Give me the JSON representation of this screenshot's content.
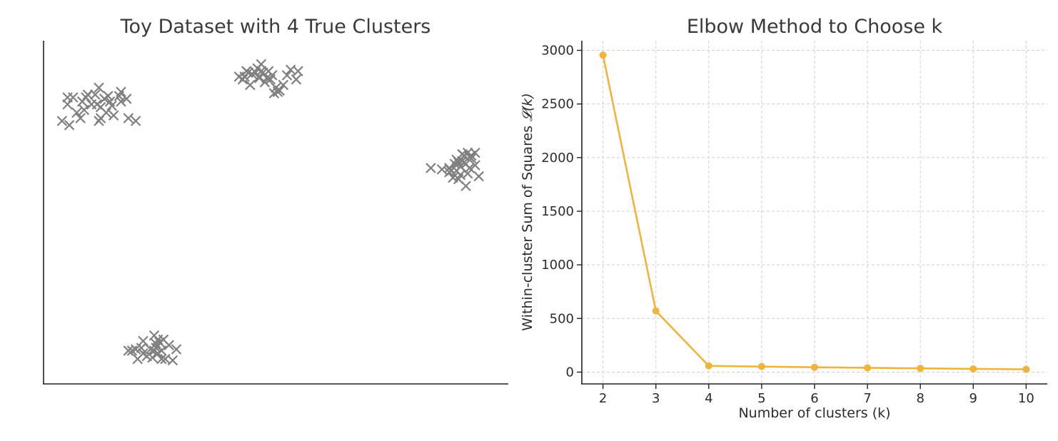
{
  "chart_data": [
    {
      "type": "scatter",
      "title": "Toy Dataset with 4 True Clusters",
      "xlabel": "",
      "ylabel": "",
      "axes_ticks": "hidden",
      "marker": "x",
      "marker_color": "#808080",
      "xlim": [
        -2,
        10.6
      ],
      "ylim": [
        -2.5,
        9.9
      ],
      "series": [
        {
          "points": [
            [
              -1.35,
              7.6
            ],
            [
              -1.1,
              7.3
            ],
            [
              -0.9,
              7.4
            ],
            [
              -0.5,
              8.2
            ],
            [
              -0.25,
              7.9
            ],
            [
              0.1,
              7.7
            ],
            [
              0.5,
              7.0
            ],
            [
              -1.5,
              7.0
            ],
            [
              -1.2,
              7.85
            ],
            [
              -0.8,
              7.95
            ],
            [
              -0.55,
              7.6
            ],
            [
              -0.35,
              7.8
            ],
            [
              -0.15,
              7.55
            ],
            [
              0.05,
              7.9
            ],
            [
              0.3,
              7.1
            ],
            [
              -0.3,
              7.3
            ],
            [
              -1.0,
              7.1
            ],
            [
              -0.7,
              7.6
            ],
            [
              -0.45,
              7.5
            ],
            [
              -0.1,
              7.2
            ],
            [
              -0.6,
              7.95
            ],
            [
              -1.35,
              7.85
            ],
            [
              -0.85,
              7.85
            ],
            [
              0.25,
              7.8
            ],
            [
              -0.5,
              7.0
            ],
            [
              -0.45,
              7.1
            ],
            [
              -1.3,
              6.85
            ],
            [
              -0.2,
              7.7
            ],
            [
              0.1,
              8.05
            ],
            [
              -0.95,
              7.7
            ]
          ]
        },
        {
          "points": [
            [
              3.3,
              8.6
            ],
            [
              3.4,
              8.5
            ],
            [
              3.5,
              8.8
            ],
            [
              3.6,
              8.3
            ],
            [
              3.75,
              8.75
            ],
            [
              3.85,
              8.55
            ],
            [
              4.0,
              8.4
            ],
            [
              4.1,
              8.8
            ],
            [
              4.2,
              8.65
            ],
            [
              4.3,
              8.2
            ],
            [
              4.35,
              8.05
            ],
            [
              4.4,
              8.1
            ],
            [
              4.5,
              8.3
            ],
            [
              4.6,
              8.65
            ],
            [
              4.7,
              8.85
            ],
            [
              4.85,
              8.5
            ],
            [
              4.9,
              8.8
            ],
            [
              3.9,
              9.05
            ],
            [
              3.95,
              8.75
            ],
            [
              4.05,
              8.55
            ],
            [
              3.65,
              8.7
            ],
            [
              3.55,
              8.75
            ],
            [
              3.8,
              8.9
            ],
            [
              4.25,
              8.0
            ],
            [
              3.9,
              8.8
            ],
            [
              3.45,
              8.6
            ],
            [
              3.85,
              8.6
            ],
            [
              4.15,
              8.5
            ]
          ]
        },
        {
          "points": [
            [
              8.5,
              5.3
            ],
            [
              8.8,
              5.25
            ],
            [
              9.0,
              5.3
            ],
            [
              9.2,
              5.6
            ],
            [
              9.3,
              5.05
            ],
            [
              9.35,
              5.55
            ],
            [
              9.4,
              5.75
            ],
            [
              9.5,
              5.85
            ],
            [
              9.6,
              5.75
            ],
            [
              9.7,
              5.4
            ],
            [
              9.8,
              5.0
            ],
            [
              9.1,
              4.95
            ],
            [
              9.25,
              4.9
            ],
            [
              9.2,
              5.2
            ],
            [
              9.45,
              4.65
            ],
            [
              9.55,
              5.3
            ],
            [
              9.35,
              5.8
            ],
            [
              9.05,
              5.2
            ],
            [
              9.4,
              5.5
            ],
            [
              9.3,
              5.35
            ],
            [
              9.15,
              5.45
            ],
            [
              9.0,
              5.15
            ],
            [
              9.6,
              5.65
            ],
            [
              9.5,
              5.1
            ],
            [
              9.25,
              5.5
            ],
            [
              9.45,
              5.45
            ],
            [
              9.7,
              5.85
            ],
            [
              9.55,
              5.7
            ]
          ]
        },
        {
          "points": [
            [
              0.3,
              -1.3
            ],
            [
              0.4,
              -1.3
            ],
            [
              0.5,
              -1.25
            ],
            [
              0.55,
              -1.6
            ],
            [
              0.65,
              -1.2
            ],
            [
              0.7,
              -1.4
            ],
            [
              0.8,
              -1.5
            ],
            [
              0.9,
              -1.25
            ],
            [
              1.0,
              -0.75
            ],
            [
              1.0,
              -1.3
            ],
            [
              1.05,
              -1.2
            ],
            [
              1.1,
              -1.4
            ],
            [
              1.15,
              -1.0
            ],
            [
              1.2,
              -1.6
            ],
            [
              1.25,
              -0.9
            ],
            [
              1.3,
              -1.6
            ],
            [
              1.4,
              -1.1
            ],
            [
              1.5,
              -1.65
            ],
            [
              1.6,
              -1.25
            ],
            [
              0.7,
              -0.95
            ],
            [
              1.05,
              -1.05
            ],
            [
              1.1,
              -0.9
            ],
            [
              0.95,
              -1.55
            ],
            [
              1.2,
              -1.3
            ]
          ]
        }
      ]
    },
    {
      "type": "line",
      "title": "Elbow Method to Choose k",
      "xlabel": "Number of clusters (k)",
      "ylabel": "Within-cluster Sum of Squares",
      "ylabel_math": "𝓛(k)",
      "grid": true,
      "line_color": "#f0b43c",
      "x": [
        2,
        3,
        4,
        5,
        6,
        7,
        8,
        9,
        10
      ],
      "y": [
        2955,
        570,
        58,
        52,
        45,
        40,
        35,
        30,
        26
      ],
      "xlim": [
        1.6,
        10.4
      ],
      "ylim": [
        -110,
        3090
      ],
      "xticks": [
        "2",
        "3",
        "4",
        "5",
        "6",
        "7",
        "8",
        "9",
        "10"
      ],
      "yticks": [
        "0",
        "500",
        "1000",
        "1500",
        "2000",
        "2500",
        "3000"
      ]
    }
  ]
}
